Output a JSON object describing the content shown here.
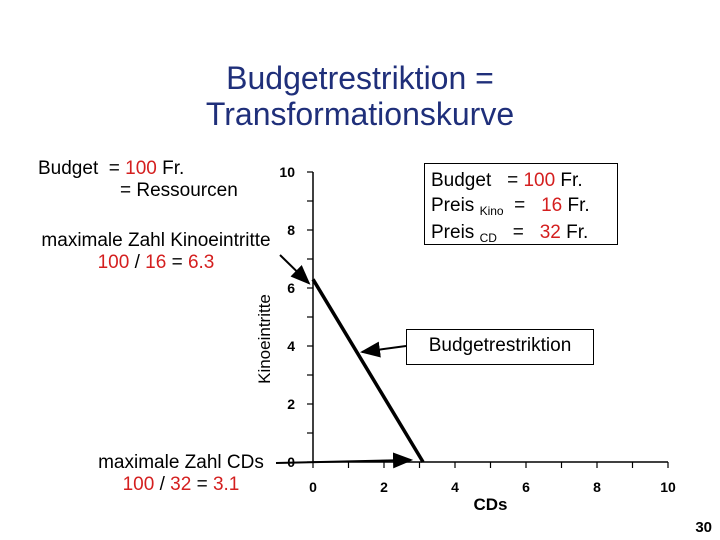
{
  "title_line1": "Budgetrestriktion =",
  "title_line2": "Transformationskurve",
  "budget_note": {
    "label": "Budget",
    "eq1": "= ",
    "value": "100",
    "unit": " Fr.",
    "line2": "= Ressourcen"
  },
  "kino_note": {
    "line1": "maximale Zahl Kinoeintritte",
    "calc": [
      "100",
      " / ",
      "16",
      " = ",
      "6.3"
    ]
  },
  "cd_note": {
    "line1": "maximale Zahl CDs",
    "calc": [
      "100",
      " / ",
      "32",
      " = ",
      "3.1"
    ]
  },
  "price_box": {
    "budget_label": "Budget",
    "budget_eq": "= ",
    "budget_value": "100",
    "budget_unit": " Fr.",
    "preis": "Preis",
    "kino_sub": "Kino",
    "kino_eq": "= ",
    "kino_value": "16",
    "kino_unit": " Fr.",
    "cd_sub": "CD",
    "cd_eq": "= ",
    "cd_value": "32",
    "cd_unit": " Fr."
  },
  "callout_label": "Budgetrestriktion",
  "page_number": "30",
  "colors": {
    "title": "#1f2f7a",
    "highlight": "#d41f1f",
    "axis": "#000000"
  },
  "chart_data": {
    "type": "line",
    "title": "",
    "xlabel": "CDs",
    "ylabel": "Kinoeintritte",
    "xlim": [
      0,
      10
    ],
    "ylim": [
      0,
      10
    ],
    "x_ticks": [
      0,
      2,
      4,
      6,
      8,
      10
    ],
    "y_ticks": [
      0,
      2,
      4,
      6,
      8,
      10
    ],
    "series": [
      {
        "x": [
          0,
          3.1
        ],
        "y": [
          6.3,
          0
        ]
      }
    ]
  }
}
